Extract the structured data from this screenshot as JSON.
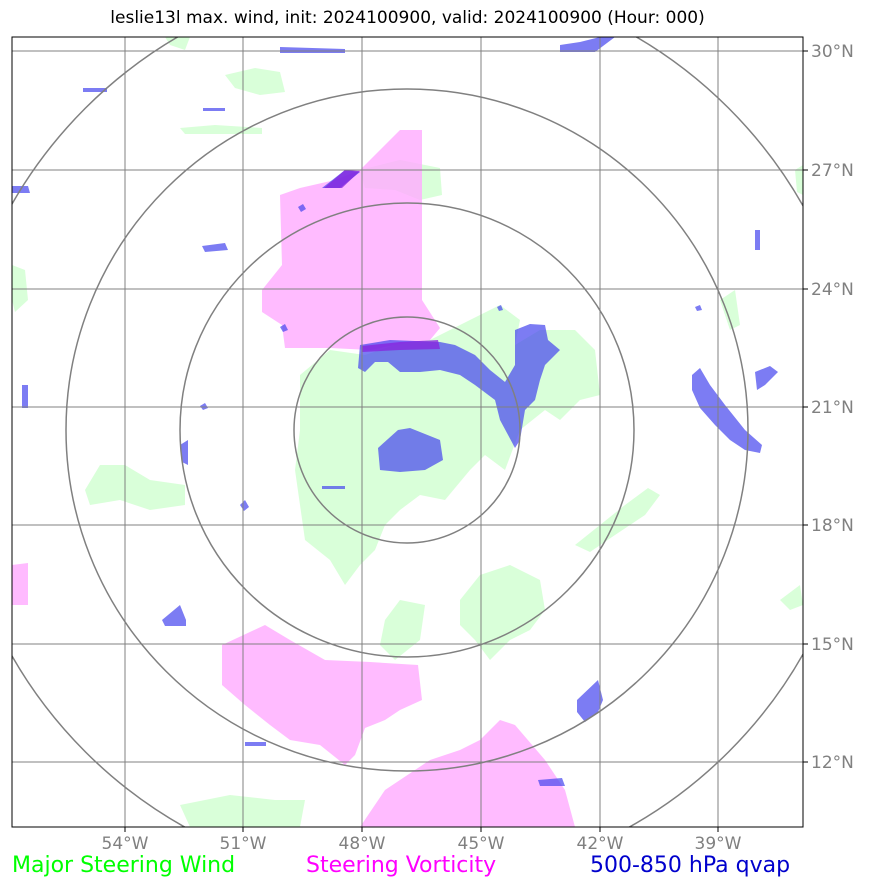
{
  "title": "leslie13l max. wind, init: 2024100900, valid: 2024100900 (Hour: 000)",
  "axes": {
    "lon_labels": [
      "54°W",
      "51°W",
      "48°W",
      "45°W",
      "42°W",
      "39°W"
    ],
    "lat_labels": [
      "30°N",
      "27°N",
      "24°N",
      "21°N",
      "18°N",
      "15°N",
      "12°N"
    ]
  },
  "legend": {
    "wind": {
      "label": "Major Steering Wind",
      "color": "#00ff00"
    },
    "vorticity": {
      "label": "Steering Vorticity",
      "color": "#ff00ff"
    },
    "qvap": {
      "label": "500-850 hPa qvap",
      "color": "#0000cc"
    }
  },
  "colors": {
    "wind_fill": "#ccffcc",
    "vorticity_fill": "#ffaaff",
    "qvap_fill": "#4444ee",
    "grid": "#808080",
    "range_rings": "#808080"
  }
}
